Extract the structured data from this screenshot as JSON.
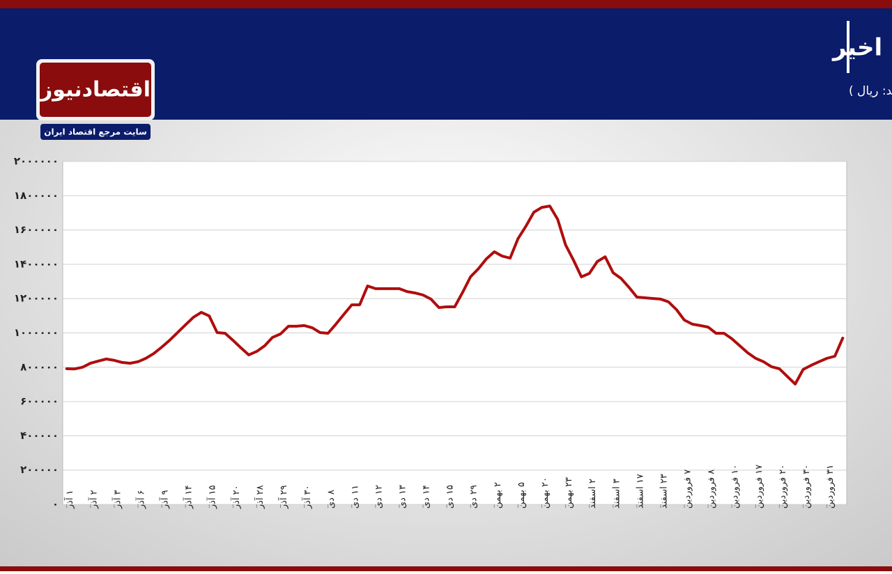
{
  "logo": {
    "name": "اقتصادنیوز",
    "tagline": "سایت مرجع اقتصاد ایران"
  },
  "chart_data": {
    "type": "line",
    "title": "روند قیمت اوراق تسه در ماه‌های اخیر",
    "subtitle": "(واحد: ریال )",
    "color": "#b00d0d",
    "grid": true,
    "ylim": [
      0,
      2000000
    ],
    "yticks": [
      {
        "value": 0,
        "label": "۰"
      },
      {
        "value": 200000,
        "label": "۲۰۰۰۰۰"
      },
      {
        "value": 400000,
        "label": "۴۰۰۰۰۰"
      },
      {
        "value": 600000,
        "label": "۶۰۰۰۰۰"
      },
      {
        "value": 800000,
        "label": "۸۰۰۰۰۰"
      },
      {
        "value": 1000000,
        "label": "۱۰۰۰۰۰۰"
      },
      {
        "value": 1200000,
        "label": "۱۲۰۰۰۰۰"
      },
      {
        "value": 1400000,
        "label": "۱۴۰۰۰۰۰"
      },
      {
        "value": 1600000,
        "label": "۱۶۰۰۰۰۰"
      },
      {
        "value": 1800000,
        "label": "۱۸۰۰۰۰۰"
      },
      {
        "value": 2000000,
        "label": "۲۰۰۰۰۰۰"
      }
    ],
    "categories": [
      "۱ آذر",
      null,
      null,
      "۲ آذر",
      null,
      null,
      "۳ آذر",
      null,
      null,
      "۶ آذر",
      null,
      null,
      "۹ آذر",
      null,
      null,
      "۱۴ آذر",
      null,
      null,
      "۱۵ آذر",
      null,
      null,
      "۲۰ آذر",
      null,
      null,
      "۲۸ آذر",
      null,
      null,
      "۲۹ آذر",
      null,
      null,
      "۳۰ آذر",
      null,
      null,
      "۸ دی",
      null,
      null,
      "۱۱ دی",
      null,
      null,
      "۱۲ دی",
      null,
      null,
      "۱۳ دی",
      null,
      null,
      "۱۴ دی",
      null,
      null,
      "۱۵ دی",
      null,
      null,
      "۲۹ دی",
      null,
      null,
      "۲ بهمن",
      null,
      null,
      "۵ بهمن",
      null,
      null,
      "۲۰ بهمن",
      null,
      null,
      "۲۳ بهمن",
      null,
      null,
      "۲ اسفند",
      null,
      null,
      "۳ اسفند",
      null,
      null,
      "۱۷ اسفند",
      null,
      null,
      "۲۳ اسفند",
      null,
      null,
      "۷ فروردین",
      null,
      null,
      "۸ فروردین",
      null,
      null,
      "۱۰ فروردین",
      null,
      null,
      "۱۷ فروردین",
      null,
      null,
      "۲۰ فروردین",
      null,
      null,
      "۳۰ فروردین",
      null,
      null,
      "۳۱ فروردین",
      null,
      null
    ],
    "values": [
      791000,
      790000,
      800000,
      823000,
      836000,
      848000,
      840000,
      828000,
      823000,
      832000,
      852000,
      880000,
      917000,
      957000,
      1002000,
      1047000,
      1091000,
      1120000,
      1099000,
      1002000,
      998000,
      957000,
      913000,
      872000,
      892000,
      925000,
      974000,
      994000,
      1039000,
      1039000,
      1043000,
      1030000,
      1002000,
      998000,
      1051000,
      1108000,
      1164000,
      1164000,
      1274000,
      1258000,
      1258000,
      1258000,
      1258000,
      1241000,
      1233000,
      1221000,
      1197000,
      1148000,
      1152000,
      1152000,
      1237000,
      1327000,
      1375000,
      1432000,
      1473000,
      1448000,
      1436000,
      1550000,
      1623000,
      1704000,
      1732000,
      1740000,
      1663000,
      1513000,
      1424000,
      1327000,
      1347000,
      1416000,
      1444000,
      1351000,
      1318000,
      1266000,
      1209000,
      1205000,
      1201000,
      1197000,
      1181000,
      1136000,
      1075000,
      1051000,
      1043000,
      1034000,
      998000,
      998000,
      966000,
      925000,
      884000,
      852000,
      832000,
      803000,
      791000,
      746000,
      702000,
      787000,
      811000,
      832000,
      852000,
      864000,
      970000
    ]
  }
}
